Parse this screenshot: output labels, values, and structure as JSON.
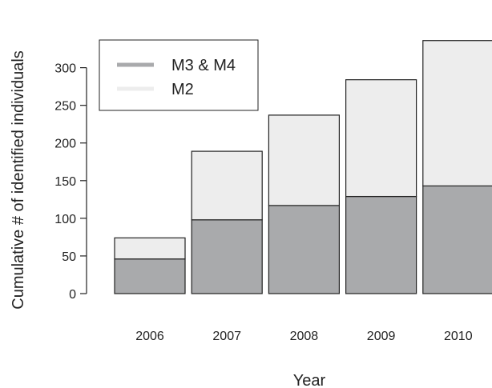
{
  "chart_data": {
    "type": "bar",
    "stacked": true,
    "categories": [
      "2006",
      "2007",
      "2008",
      "2009",
      "2010"
    ],
    "series": [
      {
        "name": "M3 & M4",
        "values": [
          46,
          98,
          117,
          129,
          143
        ],
        "color": "#a9aaac"
      },
      {
        "name": "M2",
        "values": [
          28,
          91,
          120,
          155,
          193
        ],
        "color": "#ededed"
      }
    ],
    "title": "",
    "xlabel": "Year",
    "ylabel": "Cumulative # of identified individuals",
    "ylim": [
      0,
      336
    ],
    "yticks": [
      0,
      50,
      100,
      150,
      200,
      250,
      300
    ],
    "ytick_labels": [
      "0",
      "50",
      "100",
      "150",
      "200",
      "250",
      "300"
    ],
    "grid": false,
    "legend_position": "top-left"
  }
}
